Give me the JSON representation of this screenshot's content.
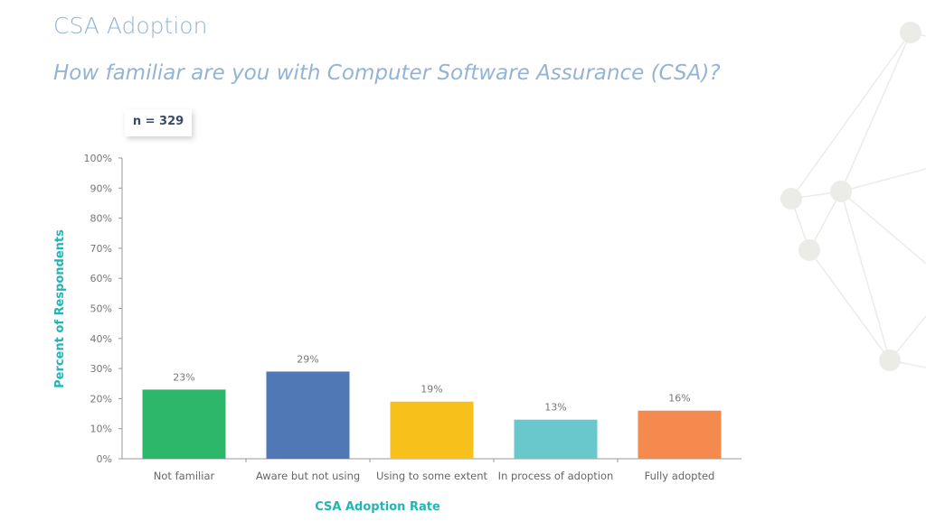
{
  "title": "CSA Adoption",
  "subtitle": "How familiar are you with Computer Software Assurance (CSA)?",
  "sample_size": "n = 329",
  "chart_data": {
    "type": "bar",
    "categories": [
      "Not familiar",
      "Aware but not using",
      "Using to some extent",
      "In process of adoption",
      "Fully adopted"
    ],
    "values": [
      23,
      29,
      19,
      13,
      16
    ],
    "data_labels": [
      "23%",
      "29%",
      "19%",
      "13%",
      "16%"
    ],
    "colors": [
      "#2db76b",
      "#4f78b5",
      "#f7c01a",
      "#68c8cc",
      "#f58a4f"
    ],
    "xlabel": "CSA Adoption Rate",
    "ylabel": "Percent of Respondents",
    "ylim": [
      0,
      100
    ],
    "yticks": [
      "0%",
      "10%",
      "20%",
      "30%",
      "40%",
      "50%",
      "60%",
      "70%",
      "80%",
      "90%",
      "100%"
    ],
    "grid": false,
    "axis_label_color": "#22b5b5"
  }
}
